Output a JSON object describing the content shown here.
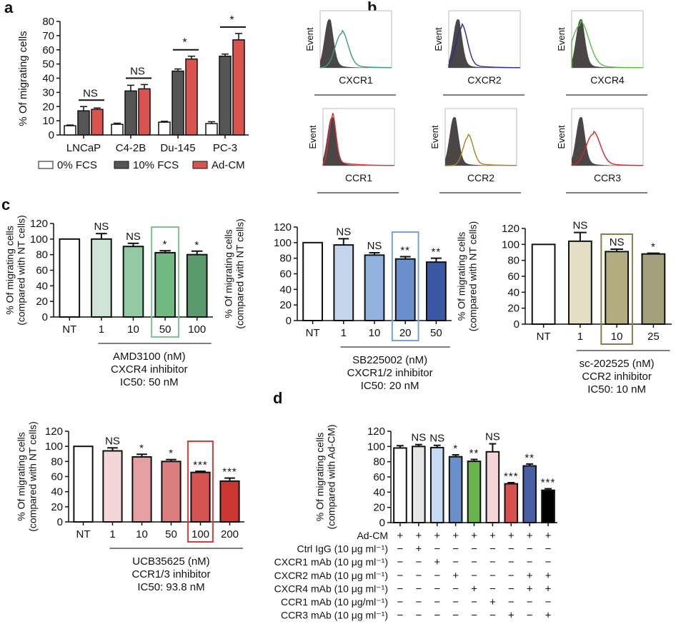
{
  "panels": {
    "a": "a",
    "b": "b",
    "c": "c",
    "d": "d"
  },
  "chart_data": [
    {
      "id": "a",
      "type": "bar",
      "title": "",
      "xlabel": "",
      "ylabel": "% Of migrating cells",
      "ylim": [
        0,
        80
      ],
      "yticks": [
        0,
        10,
        20,
        30,
        40,
        50,
        60,
        70,
        80
      ],
      "categories": [
        "LNCaP",
        "C4-2B",
        "Du-145",
        "PC-3"
      ],
      "series": [
        {
          "name": "0% FCS",
          "color": "#ffffff",
          "values": [
            6.5,
            7.5,
            9,
            8
          ],
          "errors": [
            0.5,
            0.8,
            0.6,
            1.3
          ]
        },
        {
          "name": "10% FCS",
          "color": "#555555",
          "values": [
            17,
            31,
            45,
            55.5
          ],
          "errors": [
            3,
            4,
            1.5,
            1.5
          ]
        },
        {
          "name": "Ad-CM",
          "color": "#d9534f",
          "values": [
            18,
            32.5,
            53.5,
            67
          ],
          "errors": [
            1,
            3,
            2,
            4.5
          ]
        }
      ],
      "significance": [
        "NS",
        "NS",
        "*",
        "*"
      ],
      "legend": "bottom"
    },
    {
      "id": "b",
      "type": "histogram",
      "ylabel": "Event",
      "plots": [
        {
          "marker": "CXCR1",
          "color": "#3a9a88",
          "shift": "right"
        },
        {
          "marker": "CXCR2",
          "color": "#2a2aa0",
          "shift": "slight"
        },
        {
          "marker": "CXCR4",
          "color": "#55c23a",
          "shift": "slight"
        },
        {
          "marker": "CCR1",
          "color": "#e0303a",
          "shift": "none"
        },
        {
          "marker": "CCR2",
          "color": "#b08020",
          "shift": "right"
        },
        {
          "marker": "CCR3",
          "color": "#e02020",
          "shift": "right"
        }
      ]
    },
    {
      "id": "c1",
      "type": "bar",
      "ylabel": "% Of migrating cells\n(compared with NT cells)",
      "ylim": [
        0,
        120
      ],
      "yticks": [
        0,
        20,
        40,
        60,
        80,
        100,
        120
      ],
      "categories": [
        "NT",
        "1",
        "10",
        "50",
        "100"
      ],
      "values": [
        100,
        100,
        90.5,
        82.5,
        80
      ],
      "errors": [
        0,
        7,
        4,
        2.5,
        4.5
      ],
      "colors": [
        "#ffffff",
        "#cfe3d8",
        "#93c9a4",
        "#72b882",
        "#5a9a6c"
      ],
      "significance": [
        "",
        "NS",
        "NS",
        "*",
        "*"
      ],
      "highlight_index": 3,
      "highlight_color": "#7cc48a",
      "group_label": [
        "AMD3100 (nM)",
        "CXCR4 inhibitor",
        "IC50: 50 nM"
      ]
    },
    {
      "id": "c2",
      "type": "bar",
      "ylabel": "% Of migrating cells\n(compared with NT cells)",
      "ylim": [
        0,
        120
      ],
      "yticks": [
        0,
        20,
        40,
        60,
        80,
        100,
        120
      ],
      "categories": [
        "NT",
        "1",
        "10",
        "20",
        "50"
      ],
      "values": [
        100,
        97,
        84,
        79,
        75
      ],
      "errors": [
        0,
        8,
        3,
        3,
        5
      ],
      "colors": [
        "#ffffff",
        "#c4d6ee",
        "#92b2de",
        "#6c90cc",
        "#3a58a4"
      ],
      "significance": [
        "",
        "NS",
        "NS",
        "**",
        "**"
      ],
      "highlight_index": 3,
      "highlight_color": "#7aa2da",
      "group_label": [
        "SB225002 (nM)",
        "CXCR1/2 inhibitor",
        "IC50: 20 nM"
      ]
    },
    {
      "id": "c3",
      "type": "bar",
      "ylabel": "% Of migrating cells\n(compared with NT cells)",
      "ylim": [
        0,
        120
      ],
      "yticks": [
        0,
        20,
        40,
        60,
        80,
        100,
        120
      ],
      "categories": [
        "NT",
        "1",
        "10",
        "25"
      ],
      "values": [
        100,
        104,
        91,
        88
      ],
      "errors": [
        0,
        11,
        3,
        1
      ],
      "colors": [
        "#ffffff",
        "#e4dfc4",
        "#b2ac80",
        "#a4a07c"
      ],
      "significance": [
        "",
        "NS",
        "NS",
        "*"
      ],
      "highlight_index": 2,
      "highlight_color": "#8a7c4c",
      "group_label": [
        "sc-202525 (nM)",
        "CCR2 inhibitor",
        "IC50: 10 nM"
      ]
    },
    {
      "id": "c4",
      "type": "bar",
      "ylabel": "% Of migrating cells\n(compared with NT cells)",
      "ylim": [
        0,
        120
      ],
      "yticks": [
        0,
        20,
        40,
        60,
        80,
        100,
        120
      ],
      "categories": [
        "NT",
        "1",
        "10",
        "50",
        "100",
        "200"
      ],
      "values": [
        100,
        94,
        86,
        80,
        65.5,
        54
      ],
      "errors": [
        0,
        4,
        3.5,
        2.5,
        1.5,
        4
      ],
      "colors": [
        "#ffffff",
        "#f4d6d8",
        "#e6a0a4",
        "#dc7e80",
        "#d45252",
        "#cc3630"
      ],
      "significance": [
        "",
        "NS",
        "*",
        "*",
        "***",
        "***"
      ],
      "highlight_index": 4,
      "highlight_color": "#e03a3a",
      "group_label": [
        "UCB35625 (nM)",
        "CCR1/3 inhibitor",
        "IC50: 93.8 nM"
      ]
    },
    {
      "id": "d",
      "type": "bar",
      "ylabel": "% Of migrating cells\n(compared with Ad-CM)",
      "ylim": [
        0,
        120
      ],
      "yticks": [
        0,
        20,
        40,
        60,
        80,
        100,
        120
      ],
      "values": [
        98,
        100,
        98.5,
        86.5,
        80.5,
        93,
        51,
        74.5,
        42.5
      ],
      "errors": [
        3,
        2.5,
        3,
        2.5,
        2.5,
        10.5,
        1.5,
        2.5,
        2
      ],
      "colors": [
        "#ffffff",
        "#e6e6e6",
        "#c8daf2",
        "#6a90cc",
        "#6ab44c",
        "#f4d6d8",
        "#d65050",
        "#4a5ea8",
        "#000000"
      ],
      "significance": [
        "",
        "NS",
        "NS",
        "*",
        "**",
        "NS",
        "***",
        "**",
        "***"
      ],
      "treatment_rows": [
        {
          "label": "Ad-CM",
          "signs": [
            "+",
            "+",
            "+",
            "+",
            "+",
            "+",
            "+",
            "+",
            "+"
          ]
        },
        {
          "label": "Ctrl IgG (10 μg ml⁻¹)",
          "signs": [
            "−",
            "+",
            "−",
            "−",
            "−",
            "−",
            "−",
            "−",
            "−"
          ]
        },
        {
          "label": "CXCR1 mAb (10 μg ml⁻¹)",
          "signs": [
            "−",
            "−",
            "+",
            "−",
            "−",
            "−",
            "−",
            "−",
            "−"
          ]
        },
        {
          "label": "CXCR2 mAb (10 μg ml⁻¹)",
          "signs": [
            "−",
            "−",
            "−",
            "+",
            "−",
            "−",
            "−",
            "+",
            "+"
          ]
        },
        {
          "label": "CXCR4 mAb (10 μg ml⁻¹)",
          "signs": [
            "−",
            "−",
            "−",
            "−",
            "+",
            "−",
            "−",
            "+",
            "+"
          ]
        },
        {
          "label": "CCR1 mAb (10 μg/ml⁻¹)",
          "signs": [
            "−",
            "−",
            "−",
            "−",
            "−",
            "+",
            "−",
            "−",
            "−"
          ]
        },
        {
          "label": "CCR3 mAb (10 μg ml⁻¹)",
          "signs": [
            "−",
            "−",
            "−",
            "−",
            "−",
            "−",
            "+",
            "−",
            "+"
          ]
        }
      ]
    }
  ]
}
